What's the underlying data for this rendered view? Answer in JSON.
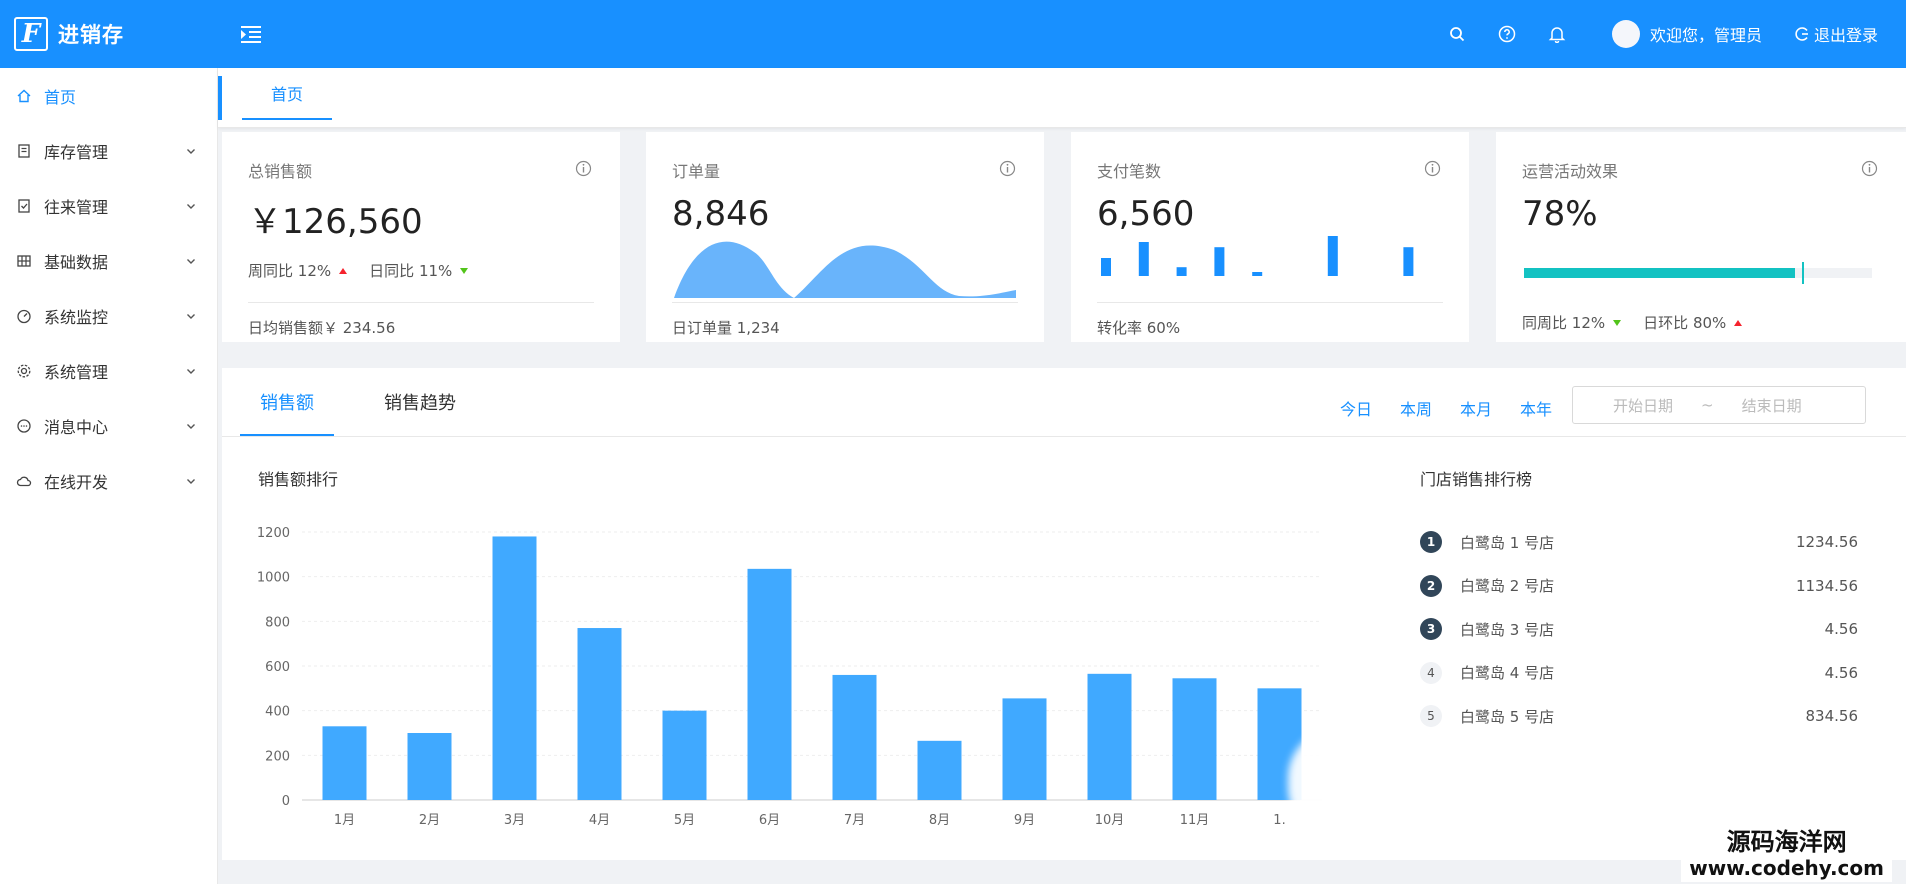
{
  "header": {
    "logo_letter": "F",
    "app_title": "进销存",
    "welcome_text": "欢迎您，管理员",
    "logout_label": "退出登录",
    "icons": [
      "menu-fold-icon",
      "search-icon",
      "question-icon",
      "bell-icon",
      "logout-icon"
    ]
  },
  "sidebar": {
    "items": [
      {
        "label": "首页",
        "icon": "home-icon"
      },
      {
        "label": "库存管理",
        "icon": "book-icon"
      },
      {
        "label": "往来管理",
        "icon": "audit-icon"
      },
      {
        "label": "基础数据",
        "icon": "table-icon"
      },
      {
        "label": "系统监控",
        "icon": "dashboard-icon"
      },
      {
        "label": "系统管理",
        "icon": "gear-icon"
      },
      {
        "label": "消息中心",
        "icon": "message-icon"
      },
      {
        "label": "在线开发",
        "icon": "cloud-icon"
      }
    ]
  },
  "tabs": {
    "home": "首页"
  },
  "cards": {
    "sales": {
      "title": "总销售额",
      "value": "￥126,560",
      "wow_label": "周同比",
      "wow_value": "12%",
      "dod_label": "日同比",
      "dod_value": "11%",
      "footer": "日均销售额￥ 234.56"
    },
    "orders": {
      "title": "订单量",
      "value": "8,846",
      "footer": "日订单量 1,234"
    },
    "payments": {
      "title": "支付笔数",
      "value": "6,560",
      "footer": "转化率 60%",
      "bars": [
        0.45,
        0.85,
        0.22,
        0.72,
        0.1,
        0,
        1.0,
        0,
        0.72,
        0.1
      ]
    },
    "ops": {
      "title": "运营活动效果",
      "value": "78%",
      "progress": 0.78,
      "target": 0.8,
      "wow_label": "同周比",
      "wow_value": "12%",
      "dod_label": "日环比",
      "dod_value": "80%"
    }
  },
  "panel": {
    "tabs": [
      "销售额",
      "销售趋势"
    ],
    "ranges": [
      "今日",
      "本周",
      "本月",
      "本年"
    ],
    "date_start_placeholder": "开始日期",
    "date_sep": "~",
    "date_end_placeholder": "结束日期",
    "chart_title": "销售额排行",
    "rank_title": "门店销售排行榜",
    "rank": [
      {
        "no": "1",
        "name": "白鹭岛 1 号店",
        "value": "1234.56"
      },
      {
        "no": "2",
        "name": "白鹭岛 2 号店",
        "value": "1134.56"
      },
      {
        "no": "3",
        "name": "白鹭岛 3 号店",
        "value": "4.56"
      },
      {
        "no": "4",
        "name": "白鹭岛 4 号店",
        "value": "4.56"
      },
      {
        "no": "5",
        "name": "白鹭岛 5 号店",
        "value": "834.56"
      }
    ]
  },
  "chart_data": {
    "type": "bar",
    "categories": [
      "1月",
      "2月",
      "3月",
      "4月",
      "5月",
      "6月",
      "7月",
      "8月",
      "9月",
      "10月",
      "11月",
      "1."
    ],
    "values": [
      330,
      300,
      1180,
      770,
      400,
      1035,
      560,
      265,
      455,
      565,
      545,
      500
    ],
    "yticks": [
      0,
      200,
      400,
      600,
      800,
      1000,
      1200
    ],
    "ylim": [
      0,
      1200
    ],
    "grid": true,
    "color": "#40a9ff"
  },
  "watermark": {
    "line1": "源码海洋网",
    "line2": "www.codehy.com"
  },
  "colors": {
    "primary": "#1890ff",
    "bar": "#40a9ff",
    "area": "#69b4fb",
    "progress": "#13c2c2",
    "up": "#f5222d",
    "down": "#52c41a"
  }
}
